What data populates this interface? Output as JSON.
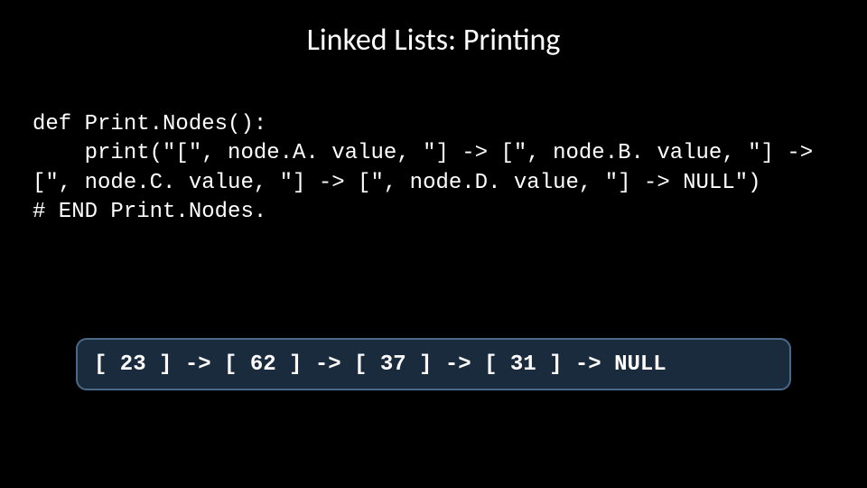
{
  "slide": {
    "title": "Linked Lists: Printing",
    "title_fontsize": 34,
    "title_color": "#ffffff",
    "title_font": "Calibri",
    "background_color": "#000000"
  },
  "code": {
    "text": "def Print.Nodes():\n    print(\"[\", node.A. value, \"] -> [\", node.B. value, \"] -> [\", node.C. value, \"] -> [\", node.D. value, \"] -> NULL\")\n# END Print.Nodes.",
    "font": "Courier New",
    "fontsize": 24,
    "color": "#ffffff"
  },
  "output": {
    "text": "[ 23 ] -> [ 62 ] -> [ 37 ] -> [ 31 ] -> NULL",
    "font": "Courier New",
    "fontsize": 24,
    "font_weight": "bold",
    "box_background": "#1a2b3d",
    "box_border_color": "#4a6a8a",
    "box_border_radius": 12,
    "text_color": "#ffffff",
    "values": [
      23,
      62,
      37,
      31
    ]
  }
}
